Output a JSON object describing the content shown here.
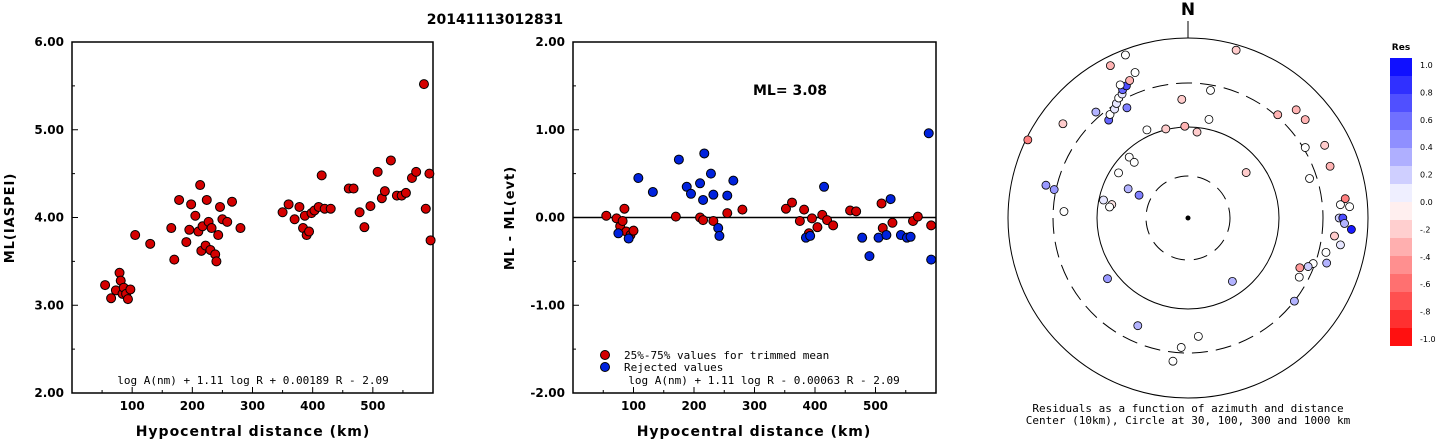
{
  "header": {
    "title": "20141113012831"
  },
  "chart_data": [
    {
      "type": "scatter",
      "xlabel": "Hypocentral distance (km)",
      "ylabel": "ML(IASPEI)",
      "xlim": [
        0,
        600
      ],
      "ylim": [
        2.0,
        6.0
      ],
      "xticks": [
        "100",
        "200",
        "300",
        "400",
        "500"
      ],
      "yticks": [
        "2.00",
        "3.00",
        "4.00",
        "5.00",
        "6.00"
      ],
      "formula": "log A(nm) + 1.11 log R + 0.00189 R - 2.09",
      "series": [
        {
          "color": "#d40000",
          "points": [
            [
              55,
              3.23
            ],
            [
              65,
              3.08
            ],
            [
              73,
              3.17
            ],
            [
              79,
              3.37
            ],
            [
              81,
              3.28
            ],
            [
              84,
              3.13
            ],
            [
              86,
              3.2
            ],
            [
              90,
              3.13
            ],
            [
              93,
              3.07
            ],
            [
              97,
              3.18
            ],
            [
              105,
              3.8
            ],
            [
              130,
              3.7
            ],
            [
              165,
              3.88
            ],
            [
              170,
              3.52
            ],
            [
              178,
              4.2
            ],
            [
              190,
              3.72
            ],
            [
              195,
              3.86
            ],
            [
              198,
              4.15
            ],
            [
              205,
              4.02
            ],
            [
              210,
              3.84
            ],
            [
              213,
              4.37
            ],
            [
              215,
              3.62
            ],
            [
              217,
              3.9
            ],
            [
              222,
              3.68
            ],
            [
              224,
              4.2
            ],
            [
              227,
              3.95
            ],
            [
              230,
              3.63
            ],
            [
              232,
              3.88
            ],
            [
              238,
              3.58
            ],
            [
              240,
              3.5
            ],
            [
              243,
              3.8
            ],
            [
              246,
              4.12
            ],
            [
              250,
              3.98
            ],
            [
              258,
              3.95
            ],
            [
              266,
              4.18
            ],
            [
              280,
              3.88
            ],
            [
              350,
              4.06
            ],
            [
              360,
              4.15
            ],
            [
              370,
              3.98
            ],
            [
              378,
              4.12
            ],
            [
              384,
              3.88
            ],
            [
              387,
              4.02
            ],
            [
              390,
              3.8
            ],
            [
              394,
              3.84
            ],
            [
              398,
              4.05
            ],
            [
              403,
              4.08
            ],
            [
              410,
              4.12
            ],
            [
              415,
              4.48
            ],
            [
              420,
              4.1
            ],
            [
              430,
              4.1
            ],
            [
              460,
              4.33
            ],
            [
              468,
              4.33
            ],
            [
              478,
              4.06
            ],
            [
              486,
              3.89
            ],
            [
              496,
              4.13
            ],
            [
              508,
              4.52
            ],
            [
              515,
              4.22
            ],
            [
              520,
              4.3
            ],
            [
              530,
              4.65
            ],
            [
              540,
              4.25
            ],
            [
              548,
              4.25
            ],
            [
              555,
              4.28
            ],
            [
              565,
              4.45
            ],
            [
              572,
              4.52
            ],
            [
              585,
              5.52
            ],
            [
              588,
              4.1
            ],
            [
              594,
              4.5
            ],
            [
              596,
              3.74
            ]
          ]
        }
      ]
    },
    {
      "type": "scatter",
      "xlabel": "Hypocentral distance (km)",
      "ylabel": "ML - ML(evt)",
      "xlim": [
        0,
        600
      ],
      "ylim": [
        -2.0,
        2.0
      ],
      "xticks": [
        "100",
        "200",
        "300",
        "400",
        "500"
      ],
      "yticks": [
        "-2.00",
        "-1.00",
        "0.00",
        "1.00",
        "2.00"
      ],
      "reference_line": 0.0,
      "ml_label": "ML= 3.08",
      "formula": "log A(nm) + 1.11 log R - 0.00063 R - 2.09",
      "series": [
        {
          "name": "25%-75% values for trimmed mean",
          "color": "#d40000",
          "points": [
            [
              55,
              0.02
            ],
            [
              72,
              -0.01
            ],
            [
              78,
              -0.1
            ],
            [
              82,
              -0.04
            ],
            [
              85,
              0.1
            ],
            [
              88,
              -0.16
            ],
            [
              95,
              -0.2
            ],
            [
              100,
              -0.15
            ],
            [
              170,
              0.01
            ],
            [
              210,
              0.0
            ],
            [
              215,
              -0.03
            ],
            [
              232,
              -0.04
            ],
            [
              255,
              0.05
            ],
            [
              280,
              0.09
            ],
            [
              352,
              0.1
            ],
            [
              362,
              0.17
            ],
            [
              375,
              -0.04
            ],
            [
              382,
              0.09
            ],
            [
              390,
              -0.18
            ],
            [
              395,
              -0.01
            ],
            [
              404,
              -0.11
            ],
            [
              412,
              0.03
            ],
            [
              420,
              -0.03
            ],
            [
              430,
              -0.09
            ],
            [
              458,
              0.08
            ],
            [
              468,
              0.07
            ],
            [
              510,
              0.16
            ],
            [
              512,
              -0.12
            ],
            [
              528,
              -0.06
            ],
            [
              562,
              -0.04
            ],
            [
              570,
              0.01
            ],
            [
              592,
              -0.09
            ]
          ]
        },
        {
          "name": "Rejected values",
          "color": "#0022dd",
          "points": [
            [
              75,
              -0.18
            ],
            [
              92,
              -0.24
            ],
            [
              108,
              0.45
            ],
            [
              132,
              0.29
            ],
            [
              175,
              0.66
            ],
            [
              188,
              0.35
            ],
            [
              195,
              0.27
            ],
            [
              210,
              0.39
            ],
            [
              215,
              0.2
            ],
            [
              217,
              0.73
            ],
            [
              228,
              0.5
            ],
            [
              232,
              0.26
            ],
            [
              240,
              -0.12
            ],
            [
              242,
              -0.21
            ],
            [
              255,
              0.25
            ],
            [
              265,
              0.42
            ],
            [
              385,
              -0.23
            ],
            [
              392,
              -0.21
            ],
            [
              415,
              0.35
            ],
            [
              478,
              -0.23
            ],
            [
              490,
              -0.44
            ],
            [
              505,
              -0.23
            ],
            [
              518,
              -0.2
            ],
            [
              525,
              0.21
            ],
            [
              542,
              -0.2
            ],
            [
              552,
              -0.23
            ],
            [
              558,
              -0.22
            ],
            [
              588,
              0.96
            ],
            [
              592,
              -0.48
            ]
          ]
        }
      ]
    },
    {
      "type": "scatter",
      "subtype": "polar",
      "north_label": "N",
      "caption_line1": "Residuals as a function of azimuth and distance",
      "caption_line2": "Center (10km), Circle at 30, 100, 300 and 1000 km",
      "colorbar_title": "Res",
      "colorbar_ticks": [
        "1.0",
        "0.8",
        "0.6",
        "0.4",
        "0.2",
        "0.0",
        "-.2",
        "-.4",
        "-.6",
        "-.8",
        "-1.0"
      ],
      "colorscale": {
        "negative": "#ff0000",
        "zero": "#ffffff",
        "positive": "#0000ff"
      },
      "points_azimuth_radius_residual": [
        [
          339,
          0.97,
          0.0
        ],
        [
          16,
          0.97,
          -0.2
        ],
        [
          307,
          0.87,
          -0.2
        ],
        [
          296,
          0.99,
          -0.5
        ],
        [
          282,
          0.76,
          0.4
        ],
        [
          283,
          0.81,
          0.4
        ],
        [
          319,
          0.78,
          0.3
        ],
        [
          321,
          0.7,
          0.6
        ],
        [
          323,
          0.72,
          0.0
        ],
        [
          326,
          0.73,
          0.1
        ],
        [
          328,
          0.75,
          0.1
        ],
        [
          330,
          0.77,
          0.0
        ],
        [
          332,
          0.78,
          0.1
        ],
        [
          333,
          0.8,
          0.6
        ],
        [
          335,
          0.81,
          0.7
        ],
        [
          333,
          0.83,
          0.0
        ],
        [
          337,
          0.83,
          -0.3
        ],
        [
          340,
          0.86,
          0.0
        ],
        [
          333,
          0.95,
          -0.3
        ],
        [
          357,
          0.66,
          -0.2
        ],
        [
          303,
          0.46,
          0.0
        ],
        [
          316,
          0.47,
          0.0
        ],
        [
          316,
          0.43,
          0.0
        ],
        [
          296,
          0.37,
          0.3
        ],
        [
          295,
          0.3,
          0.5
        ],
        [
          280,
          0.43,
          -0.1
        ],
        [
          273,
          0.69,
          0.0
        ],
        [
          282,
          0.48,
          0.1
        ],
        [
          278,
          0.44,
          0.0
        ],
        [
          335,
          0.54,
          0.0
        ],
        [
          331,
          0.7,
          0.5
        ],
        [
          346,
          0.51,
          -0.2
        ],
        [
          358,
          0.51,
          -0.3
        ],
        [
          10,
          0.72,
          0.0
        ],
        [
          41,
          0.76,
          -0.3
        ],
        [
          45,
          0.85,
          -0.3
        ],
        [
          50,
          0.85,
          -0.3
        ],
        [
          59,
          0.76,
          0.0
        ],
        [
          62,
          0.86,
          -0.2
        ],
        [
          70,
          0.84,
          -0.3
        ],
        [
          72,
          0.71,
          0.0
        ],
        [
          83,
          0.88,
          -0.5
        ],
        [
          85,
          0.85,
          0.0
        ],
        [
          86,
          0.9,
          0.0
        ],
        [
          90,
          0.84,
          0.2
        ],
        [
          90,
          0.86,
          0.7
        ],
        [
          94,
          0.91,
          0.9
        ],
        [
          92,
          0.87,
          0.3
        ],
        [
          97,
          0.82,
          -0.2
        ],
        [
          100,
          0.86,
          0.1
        ],
        [
          104,
          0.79,
          0.0
        ],
        [
          108,
          0.81,
          0.3
        ],
        [
          110,
          0.74,
          0.0
        ],
        [
          112,
          0.72,
          0.2
        ],
        [
          114,
          0.68,
          -0.4
        ],
        [
          118,
          0.7,
          0.0
        ],
        [
          128,
          0.75,
          0.3
        ],
        [
          175,
          0.66,
          0.0
        ],
        [
          145,
          0.43,
          0.3
        ],
        [
          183,
          0.72,
          0.0
        ],
        [
          186,
          0.8,
          0.0
        ],
        [
          205,
          0.66,
          0.3
        ],
        [
          233,
          0.56,
          0.4
        ],
        [
          52,
          0.41,
          -0.2
        ],
        [
          6,
          0.48,
          -0.2
        ],
        [
          12,
          0.56,
          0.0
        ]
      ]
    }
  ]
}
